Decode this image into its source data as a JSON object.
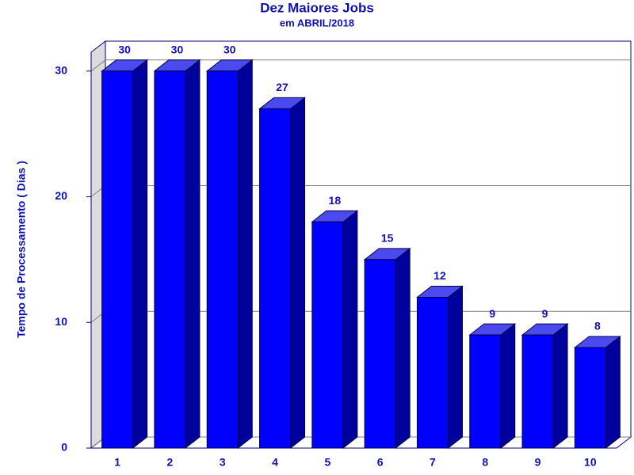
{
  "chart_data": {
    "type": "bar3d",
    "title": "Dez Maiores Jobs",
    "subtitle": "em ABRIL/2018",
    "y_label": "Tempo de Processamento ( Dias )",
    "categories": [
      "1",
      "2",
      "3",
      "4",
      "5",
      "6",
      "7",
      "8",
      "9",
      "10"
    ],
    "values": [
      30,
      30,
      30,
      27,
      18,
      15,
      12,
      9,
      9,
      8
    ],
    "color": "#0000ff",
    "ylim": [
      0,
      31.5
    ],
    "yticks": [
      0,
      10,
      20,
      30
    ],
    "grid": true
  }
}
